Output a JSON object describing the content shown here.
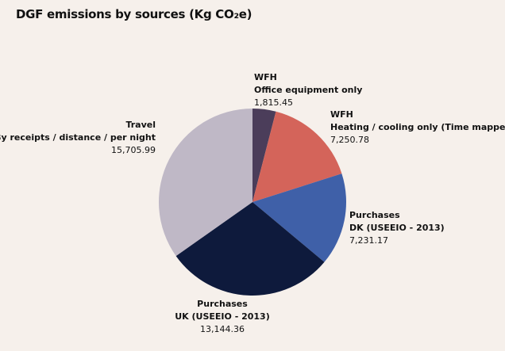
{
  "header": {
    "title": "DGF emissions by sources (Kg CO₂e)"
  },
  "chart_data": {
    "type": "pie",
    "title": "DGF emissions by sources (Kg CO₂e)",
    "slices": [
      {
        "label_line1": "WFH",
        "label_line2": "Office equipment only",
        "value": 1815.45,
        "value_text": "1,815.45",
        "color": "#4b3d5a"
      },
      {
        "label_line1": "WFH",
        "label_line2": "Heating / cooling only (Time mapped)",
        "value": 7250.78,
        "value_text": "7,250.78",
        "color": "#d4645a"
      },
      {
        "label_line1": "Purchases",
        "label_line2": "DK (USEEIO - 2013)",
        "value": 7231.17,
        "value_text": "7,231.17",
        "color": "#3f60a8"
      },
      {
        "label_line1": "Purchases",
        "label_line2": "UK (USEEIO - 2013)",
        "value": 13144.36,
        "value_text": "13,144.36",
        "color": "#0e1a3c"
      },
      {
        "label_line1": "Travel",
        "label_line2": "By receipts / distance / per night",
        "value": 15705.99,
        "value_text": "15,705.99",
        "color": "#bfb8c6"
      }
    ]
  }
}
